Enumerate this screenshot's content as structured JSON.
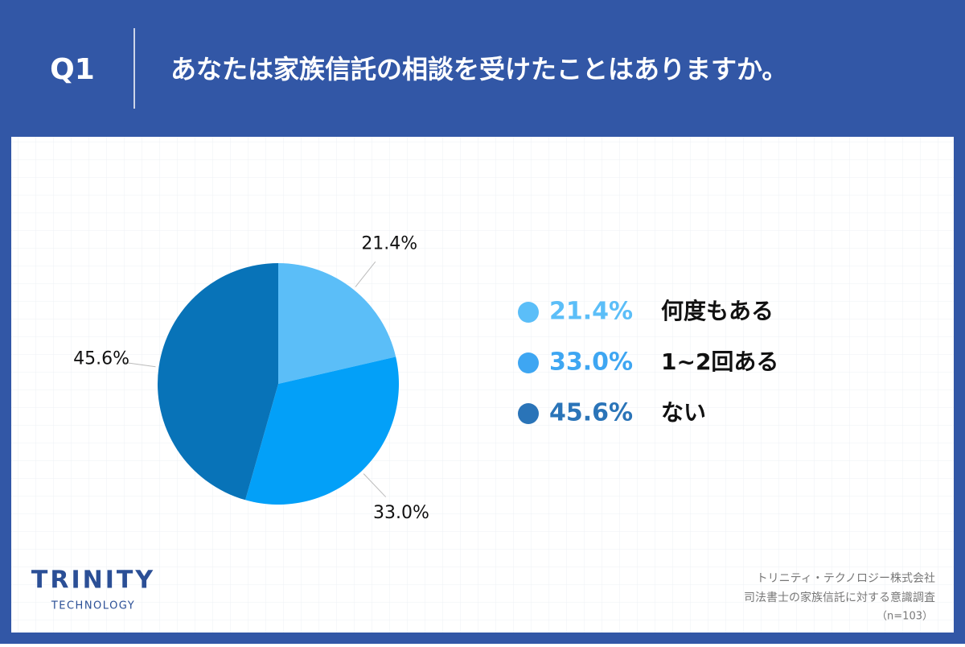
{
  "header": {
    "number": "Q1",
    "question": "あなたは家族信託の相談を受けたことはありますか。"
  },
  "chart_data": {
    "type": "pie",
    "categories": [
      "何度もある",
      "1~2回ある",
      "ない"
    ],
    "values": [
      21.4,
      33.0,
      45.6
    ],
    "value_labels": [
      "21.4%",
      "33.0%",
      "45.6%"
    ],
    "colors": [
      "#5bbef8",
      "#03a0f8",
      "#0873b8"
    ],
    "legend_colors": [
      "#5bbef8",
      "#3ea6f2",
      "#2a74b8"
    ]
  },
  "logo": {
    "name": "TRINITY",
    "sub": "TECHNOLOGY"
  },
  "source": {
    "company": "トリニティ・テクノロジー株式会社",
    "survey": "司法書士の家族信託に対する意識調査",
    "sample": "（n=103）"
  }
}
